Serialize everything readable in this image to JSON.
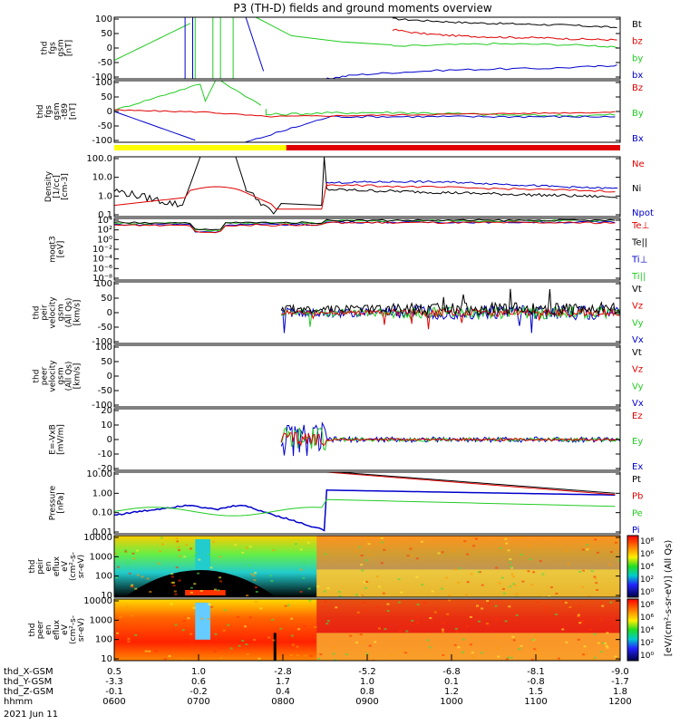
{
  "chart_data": {
    "type": "line",
    "title": "P3 (TH-D) fields and ground moments overview",
    "colors": {
      "black": "#000000",
      "red": "#e00000",
      "green": "#22cc22",
      "blue": "#0000cc",
      "yellow": "#ffff00"
    },
    "panels": [
      {
        "id": "fgs-gsm",
        "ylabel": [
          "thd",
          "fgs",
          "gsm",
          "[nT]"
        ],
        "ylim": [
          -100,
          100
        ],
        "ticks": [
          "100",
          "50",
          "0",
          "-50",
          "-100"
        ],
        "legend": [
          "Bt",
          "bz",
          "by",
          "bx"
        ],
        "legend_colors": [
          "black",
          "red",
          "green",
          "blue"
        ]
      },
      {
        "id": "fgs-gsm-t89",
        "ylabel": [
          "thd",
          "fgs",
          "gsm",
          "-t89",
          "[nT]"
        ],
        "ylim": [
          -120,
          120
        ],
        "ticks": [
          "100",
          "50",
          "0",
          "-50",
          "-100"
        ],
        "legend": [
          "Bz",
          "By",
          "Bx"
        ],
        "legend_colors": [
          "red",
          "green",
          "blue"
        ]
      },
      {
        "id": "density",
        "ylabel": [
          "Density",
          "[1/cc]",
          "[cm-3]"
        ],
        "log": true,
        "ticks": [
          "100.0",
          "10.0",
          "1.0",
          "0.1"
        ],
        "legend": [
          "Ne",
          "Ni",
          "Npot"
        ],
        "legend_colors": [
          "red",
          "black",
          "blue"
        ]
      },
      {
        "id": "temperature",
        "ylabel": [
          "moqt3",
          "[eV]"
        ],
        "log": true,
        "ticks": [
          "10⁴",
          "10²",
          "10⁰",
          "10⁻²",
          "10⁻⁴",
          "10⁻⁶",
          "10⁻⁸"
        ],
        "legend": [
          "Te⊥",
          "Te||",
          "Ti⊥",
          "Ti||"
        ],
        "legend_colors": [
          "red",
          "black",
          "blue",
          "green"
        ]
      },
      {
        "id": "peir-velocity",
        "ylabel": [
          "thd",
          "peir",
          "velocity",
          "gsm",
          "(All Qs)",
          "[km/s]"
        ],
        "ylim": [
          -100,
          100
        ],
        "ticks": [
          "100",
          "50",
          "0",
          "-50",
          "-100"
        ],
        "legend": [
          "Vt",
          "Vz",
          "Vy",
          "Vx"
        ],
        "legend_colors": [
          "black",
          "red",
          "green",
          "blue"
        ]
      },
      {
        "id": "peer-velocity",
        "ylabel": [
          "thd",
          "peer",
          "velocity",
          "gsm",
          "(All Qs)",
          "[km/s]"
        ],
        "ylim": [
          -100,
          100
        ],
        "ticks": [
          "100",
          "50",
          "0",
          "-50",
          "-100"
        ],
        "legend": [
          "Vt",
          "Vz",
          "Vy",
          "Vx"
        ],
        "legend_colors": [
          "black",
          "red",
          "green",
          "blue"
        ]
      },
      {
        "id": "efield",
        "ylabel": [
          "E=-VxB",
          "[mV/m]"
        ],
        "ylim": [
          -20,
          20
        ],
        "ticks": [
          "20",
          "10",
          "0",
          "-10",
          "-20"
        ],
        "legend": [
          "Ez",
          "Ey",
          "Ex"
        ],
        "legend_colors": [
          "red",
          "green",
          "blue"
        ]
      },
      {
        "id": "pressure",
        "ylabel": [
          "Pressure",
          "[nPa]"
        ],
        "log": true,
        "ticks": [
          "10.00",
          "1.00",
          "0.10",
          "0.01"
        ],
        "legend": [
          "Pt",
          "Pb",
          "Pe",
          "Pi"
        ],
        "legend_colors": [
          "black",
          "red",
          "green",
          "blue"
        ]
      },
      {
        "id": "peir-eflux",
        "type": "heatmap",
        "ylabel": [
          "thd",
          "peir",
          "en",
          "eflux",
          "eV",
          "(cm²-s-",
          "sr-eV)"
        ],
        "ticks": [
          "10000",
          "1000",
          "100",
          "10"
        ]
      },
      {
        "id": "peer-eflux",
        "type": "heatmap",
        "ylabel": [
          "thd",
          "peer",
          "en",
          "eflux",
          "eV",
          "(cm²-s-",
          "sr-eV)"
        ],
        "ticks": [
          "10000",
          "1000",
          "100",
          "10"
        ]
      }
    ],
    "colorbar": {
      "ticks": [
        "10⁸",
        "10⁶",
        "10⁴",
        "10²",
        "10⁰"
      ],
      "label": "[eV/(cm²-s-sr-eV)] (All Qs)"
    },
    "quality_bar": [
      {
        "from": 0,
        "to": 0.34,
        "color": "yellow"
      },
      {
        "from": 0.34,
        "to": 1.0,
        "color": "red"
      }
    ],
    "x_axis": {
      "rows": [
        {
          "label": "thd_X-GSM",
          "values": [
            "0.5",
            "1.0",
            "-2.8",
            "-5.2",
            "-6.8",
            "-8.1",
            "-9.0"
          ]
        },
        {
          "label": "thd_Y-GSM",
          "values": [
            "-3.3",
            "0.6",
            "1.7",
            "1.0",
            "0.1",
            "-0.8",
            "-1.7"
          ]
        },
        {
          "label": "thd_Z-GSM",
          "values": [
            "-0.1",
            "-0.2",
            "0.4",
            "0.8",
            "1.2",
            "1.5",
            "1.8"
          ]
        },
        {
          "label": "hhmm",
          "values": [
            "0600",
            "0700",
            "0800",
            "0900",
            "1000",
            "1100",
            "1200"
          ]
        }
      ],
      "date": "2021 Jun 11"
    },
    "series_samples": {
      "bt": [
        [
          0.55,
          95
        ],
        [
          0.6,
          90
        ],
        [
          0.65,
          86
        ],
        [
          0.7,
          82
        ],
        [
          0.75,
          80
        ],
        [
          0.8,
          78
        ],
        [
          0.85,
          76
        ],
        [
          0.9,
          74
        ],
        [
          0.95,
          70
        ],
        [
          1.0,
          66
        ]
      ],
      "bz": [
        [
          0.55,
          60
        ],
        [
          0.6,
          48
        ],
        [
          0.65,
          42
        ],
        [
          0.7,
          38
        ],
        [
          0.75,
          36
        ],
        [
          0.8,
          34
        ],
        [
          0.85,
          33
        ],
        [
          0.9,
          30
        ],
        [
          0.95,
          28
        ],
        [
          1.0,
          26
        ]
      ],
      "by_outer": [
        [
          0.55,
          5
        ],
        [
          0.65,
          10
        ],
        [
          0.75,
          14
        ],
        [
          0.85,
          12
        ],
        [
          0.95,
          8
        ],
        [
          1.0,
          0
        ]
      ],
      "bx_outer": [
        [
          0.42,
          -100
        ],
        [
          0.47,
          -88
        ],
        [
          0.55,
          -80
        ],
        [
          0.65,
          -72
        ],
        [
          0.75,
          -68
        ],
        [
          0.85,
          -66
        ],
        [
          0.95,
          -60
        ],
        [
          1.0,
          -55
        ]
      ]
    }
  }
}
